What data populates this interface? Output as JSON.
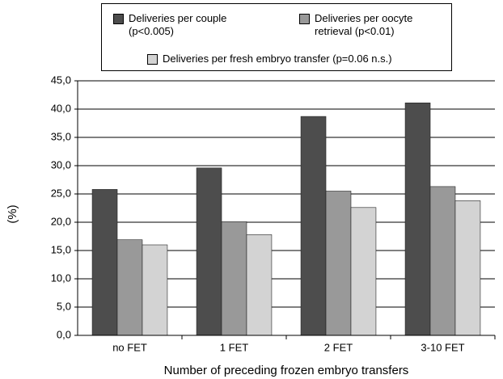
{
  "chart_data": {
    "type": "bar",
    "x_label": "Number of preceding frozen embryo transfers",
    "y_label": "(%)",
    "categories": [
      "no FET",
      "1 FET",
      "2 FET",
      "3-10 FET"
    ],
    "series": [
      {
        "name": "Deliveries per couple (p<0.005)",
        "color": "#4d4d4d",
        "values": [
          25.8,
          29.6,
          38.7,
          41.1
        ]
      },
      {
        "name": "Deliveries per oocyte retrieval (p<0.01)",
        "color": "#999999",
        "values": [
          16.9,
          20.1,
          25.5,
          26.3
        ]
      },
      {
        "name": "Deliveries per fresh embryo transfer (p=0.06 n.s.)",
        "color": "#d3d3d3",
        "values": [
          16.0,
          17.8,
          22.6,
          23.8
        ]
      }
    ],
    "ylim": [
      0,
      45
    ],
    "yticks": [
      {
        "value": 0,
        "label": "0,0"
      },
      {
        "value": 5,
        "label": "5,0"
      },
      {
        "value": 10,
        "label": "10,0"
      },
      {
        "value": 15,
        "label": "15,0"
      },
      {
        "value": 20,
        "label": "20,0"
      },
      {
        "value": 25,
        "label": "25,0"
      },
      {
        "value": 30,
        "label": "30,0"
      },
      {
        "value": 35,
        "label": "35,0"
      },
      {
        "value": 40,
        "label": "40,0"
      },
      {
        "value": 45,
        "label": "45,0"
      }
    ],
    "grid": true
  }
}
